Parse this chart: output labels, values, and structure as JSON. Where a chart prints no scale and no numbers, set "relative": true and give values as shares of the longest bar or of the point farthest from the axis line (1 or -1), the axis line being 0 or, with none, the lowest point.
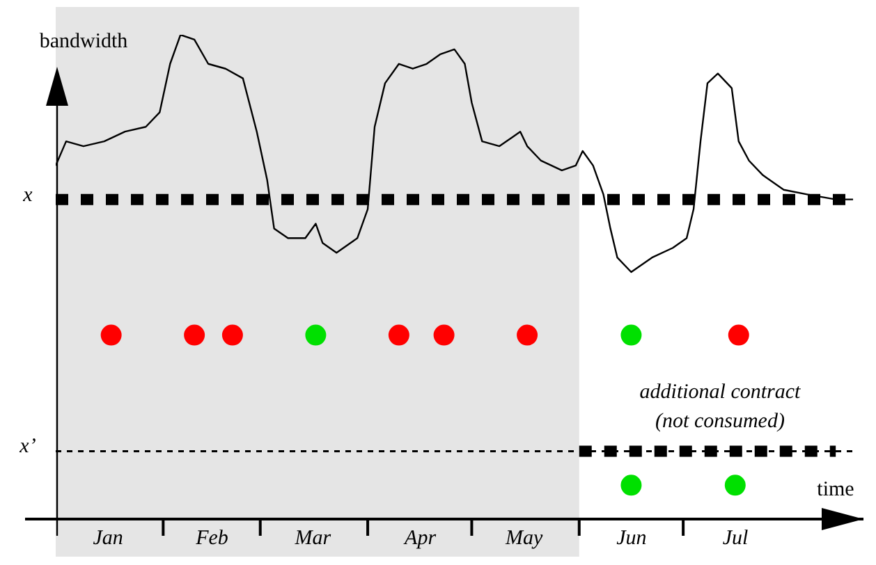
{
  "chart_data": {
    "type": "line",
    "relative": true,
    "xlabel": "time",
    "ylabel": "bandwidth",
    "xlim": [
      "--01-01",
      "--08-22"
    ],
    "xticks": [
      {
        "value": "--02-01",
        "label": null
      },
      {
        "value": "--03-01",
        "label": null
      },
      {
        "value": "--04-01",
        "label": null
      },
      {
        "value": "--05-01",
        "label": null
      },
      {
        "value": "--06-01",
        "label": null
      },
      {
        "value": "--07-01",
        "label": null
      },
      {
        "value": "--01-16",
        "label": "Jan"
      },
      {
        "value": "--02-15",
        "label": "Feb"
      },
      {
        "value": "--03-16",
        "label": "Mar"
      },
      {
        "value": "--04-16",
        "label": "Apr"
      },
      {
        "value": "--05-16",
        "label": "May"
      },
      {
        "value": "--06-16",
        "label": "Jun"
      },
      {
        "value": "--07-16",
        "label": "Jul"
      }
    ],
    "series": [
      {
        "type": "line",
        "color": "#000000",
        "marker": "none",
        "line_style": "solid",
        "x": [
          "--01-01",
          "--01-04",
          "--01-09",
          "--01-15",
          "--01-21",
          "--01-27",
          "--01-31",
          "--02-03",
          "--02-06",
          "--02-10",
          "--02-14",
          "--02-19",
          "--02-24",
          "--02-28",
          "--03-03",
          "--03-05",
          "--03-09",
          "--03-14",
          "--03-17",
          "--03-19",
          "--03-23",
          "--03-29",
          "--04-01",
          "--04-03",
          "--04-06",
          "--04-10",
          "--04-14",
          "--04-18",
          "--04-22",
          "--04-26",
          "--04-29",
          "--05-01",
          "--05-04",
          "--05-09",
          "--05-13",
          "--05-15",
          "--05-17",
          "--05-21",
          "--05-27",
          "--05-31",
          "--06-02",
          "--06-05",
          "--06-08",
          "--06-10",
          "--06-12",
          "--06-16",
          "--06-22",
          "--06-28",
          "--07-02",
          "--07-04",
          "--07-06",
          "--07-08",
          "--07-11",
          "--07-15",
          "--07-17",
          "--07-20",
          "--07-24",
          "--07-30",
          "--08-06",
          "--08-14",
          "--08-19"
        ],
        "values": [
          0.73,
          0.78,
          0.77,
          0.78,
          0.8,
          0.81,
          0.84,
          0.94,
          1,
          0.99,
          0.94,
          0.93,
          0.91,
          0.8,
          0.7,
          0.6,
          0.58,
          0.58,
          0.61,
          0.57,
          0.55,
          0.58,
          0.64,
          0.81,
          0.9,
          0.94,
          0.93,
          0.94,
          0.96,
          0.97,
          0.94,
          0.86,
          0.78,
          0.77,
          0.79,
          0.8,
          0.77,
          0.74,
          0.72,
          0.73,
          0.76,
          0.73,
          0.67,
          0.6,
          0.54,
          0.51,
          0.54,
          0.56,
          0.58,
          0.64,
          0.78,
          0.9,
          0.92,
          0.89,
          0.78,
          0.74,
          0.71,
          0.68,
          0.67,
          0.66,
          0.66
        ]
      },
      {
        "type": "line",
        "color": "#000000",
        "marker": "none",
        "line_style": "dotted",
        "x": [
          "--06-01",
          "--08-14"
        ],
        "values": [
          0.14,
          0.14
        ]
      },
      {
        "type": "scatter",
        "color": "#ff0000",
        "marker": "circle",
        "x": [
          "--01-17",
          "--02-10",
          "--02-21",
          "--04-10",
          "--04-23",
          "--05-17",
          "--07-17"
        ],
        "values": [
          0.38,
          0.38,
          0.38,
          0.38,
          0.38,
          0.38,
          0.38
        ]
      },
      {
        "type": "scatter",
        "color": "#00e000",
        "marker": "circle",
        "x": [
          "--03-17",
          "--06-16",
          "--06-16",
          "--07-16"
        ],
        "values": [
          0.38,
          0.38,
          0.07,
          0.07
        ]
      }
    ],
    "ref_lines": [
      {
        "axis": "y",
        "value": 0.66,
        "label": "x",
        "line_style": "dotted"
      },
      {
        "axis": "y",
        "value": 0.14,
        "label": "x’",
        "line_style": "dashed"
      }
    ],
    "bands": [
      {
        "axis": "x",
        "from": "--01-01",
        "to": "--06-01",
        "color": "#e5e5e5"
      }
    ],
    "annotations": [
      "additional contract\n(not consumed)"
    ],
    "legend": false
  }
}
